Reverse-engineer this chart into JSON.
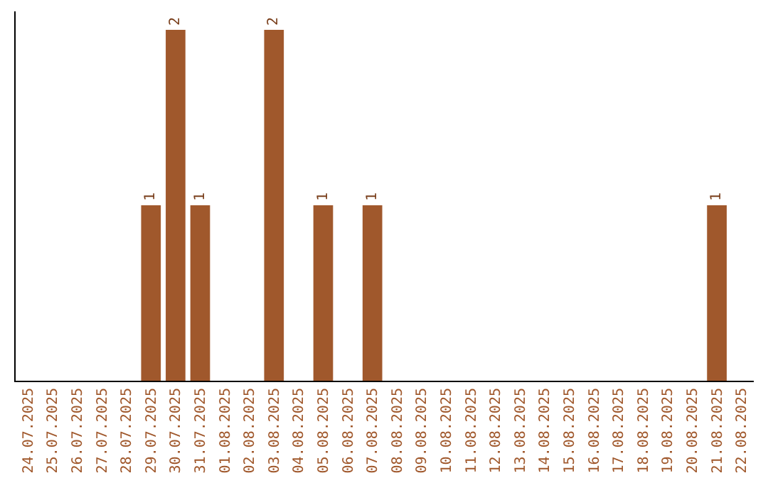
{
  "chart_data": {
    "type": "bar",
    "categories": [
      "24.07.2025",
      "25.07.2025",
      "26.07.2025",
      "27.07.2025",
      "28.07.2025",
      "29.07.2025",
      "30.07.2025",
      "31.07.2025",
      "01.08.2025",
      "02.08.2025",
      "03.08.2025",
      "04.08.2025",
      "05.08.2025",
      "06.08.2025",
      "07.08.2025",
      "08.08.2025",
      "09.08.2025",
      "10.08.2025",
      "11.08.2025",
      "12.08.2025",
      "13.08.2025",
      "14.08.2025",
      "15.08.2025",
      "16.08.2025",
      "17.08.2025",
      "18.08.2025",
      "19.08.2025",
      "20.08.2025",
      "21.08.2025",
      "22.08.2025"
    ],
    "values": [
      0,
      0,
      0,
      0,
      0,
      1,
      2,
      1,
      0,
      0,
      2,
      0,
      1,
      0,
      1,
      0,
      0,
      0,
      0,
      0,
      0,
      0,
      0,
      0,
      0,
      0,
      0,
      0,
      1,
      0
    ],
    "color": "#a0582c",
    "value_labels": [
      null,
      null,
      null,
      null,
      null,
      "1",
      "2",
      "1",
      null,
      null,
      "2",
      null,
      "1",
      null,
      "1",
      null,
      null,
      null,
      null,
      null,
      null,
      null,
      null,
      null,
      null,
      null,
      null,
      null,
      "1",
      null
    ],
    "tick_labels": "x",
    "grid": false,
    "legend": false
  }
}
